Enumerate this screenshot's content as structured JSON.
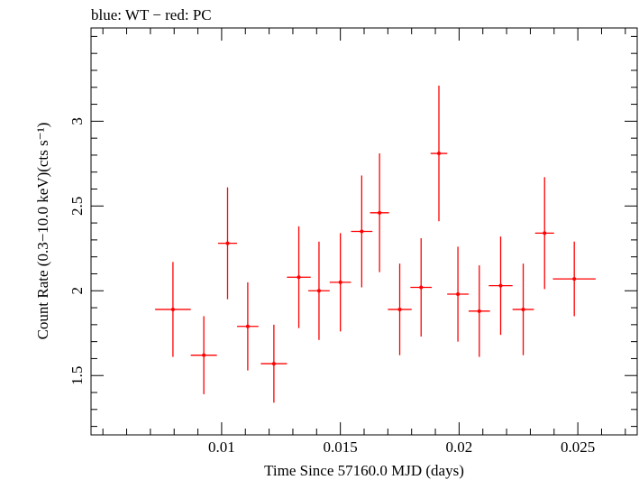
{
  "chart_data": {
    "type": "scatter",
    "title": "blue: WT − red: PC",
    "xlabel": "Time Since 57160.0 MJD (days)",
    "ylabel": "Count Rate (0.3−10.0 keV)(cts s⁻¹)",
    "xlim": [
      0.0045,
      0.0275
    ],
    "ylim": [
      1.15,
      3.55
    ],
    "x_ticks": [
      0.01,
      0.015,
      0.02,
      0.025
    ],
    "x_tick_labels": [
      "0.01",
      "0.015",
      "0.02",
      "0.025"
    ],
    "y_ticks": [
      1.5,
      2,
      2.5,
      3
    ],
    "y_tick_labels": [
      "1.5",
      "2",
      "2.5",
      "3"
    ],
    "grid": false,
    "series": [
      {
        "name": "PC",
        "color": "#ff0000",
        "points": [
          {
            "x": 0.00795,
            "xerr": 0.00075,
            "y": 1.89,
            "yerr": 0.28
          },
          {
            "x": 0.00925,
            "xerr": 0.00055,
            "y": 1.62,
            "yerr": 0.23
          },
          {
            "x": 0.01025,
            "xerr": 0.0004,
            "y": 2.28,
            "yerr": 0.33
          },
          {
            "x": 0.0111,
            "xerr": 0.00045,
            "y": 1.79,
            "yerr": 0.26
          },
          {
            "x": 0.0122,
            "xerr": 0.00055,
            "y": 1.57,
            "yerr": 0.23
          },
          {
            "x": 0.01325,
            "xerr": 0.0005,
            "y": 2.08,
            "yerr": 0.3
          },
          {
            "x": 0.0141,
            "xerr": 0.00045,
            "y": 2.0,
            "yerr": 0.29
          },
          {
            "x": 0.015,
            "xerr": 0.00045,
            "y": 2.05,
            "yerr": 0.29
          },
          {
            "x": 0.0159,
            "xerr": 0.00045,
            "y": 2.35,
            "yerr": 0.33
          },
          {
            "x": 0.01665,
            "xerr": 0.0004,
            "y": 2.46,
            "yerr": 0.35
          },
          {
            "x": 0.0175,
            "xerr": 0.0005,
            "y": 1.89,
            "yerr": 0.27
          },
          {
            "x": 0.0184,
            "xerr": 0.00045,
            "y": 2.02,
            "yerr": 0.29
          },
          {
            "x": 0.01915,
            "xerr": 0.00035,
            "y": 2.81,
            "yerr": 0.4
          },
          {
            "x": 0.01995,
            "xerr": 0.00045,
            "y": 1.98,
            "yerr": 0.28
          },
          {
            "x": 0.02085,
            "xerr": 0.00045,
            "y": 1.88,
            "yerr": 0.27
          },
          {
            "x": 0.02175,
            "xerr": 0.0005,
            "y": 2.03,
            "yerr": 0.29
          },
          {
            "x": 0.0227,
            "xerr": 0.00045,
            "y": 1.89,
            "yerr": 0.27
          },
          {
            "x": 0.0236,
            "xerr": 0.0004,
            "y": 2.34,
            "yerr": 0.33
          },
          {
            "x": 0.02485,
            "xerr": 0.0009,
            "y": 2.07,
            "yerr": 0.22
          }
        ]
      }
    ]
  }
}
